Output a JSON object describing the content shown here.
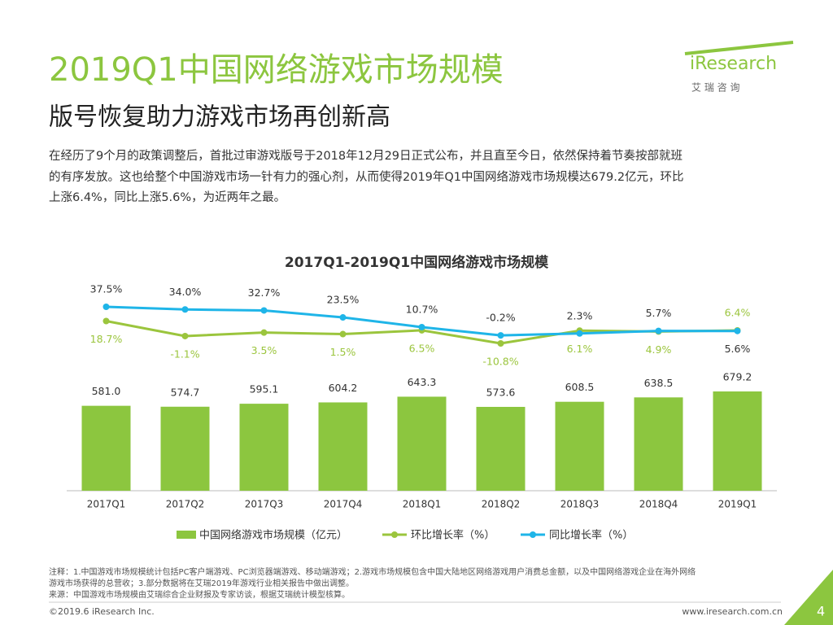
{
  "header": {
    "title": "2019Q1中国网络游戏市场规模",
    "subtitle": "版号恢复助力游戏市场再创新高",
    "body": [
      "在经历了9个月的政策调整后，首批过审游戏版号于2018年12月29日正式公布，并且直至今日，依然保持着节奏按部就班",
      "的有序发放。这也给整个中国游戏市场一针有力的强心剂，从而使得2019年Q1中国网络游戏市场规模达679.2亿元，环比",
      "上涨6.4%，同比上涨5.6%，为近两年之最。"
    ]
  },
  "logo": {
    "name": "iResearch",
    "sub": "艾 瑞 咨 询"
  },
  "chart_data": {
    "type": "bar",
    "title": "2017Q1-2019Q1中国网络游戏市场规模",
    "categories": [
      "2017Q1",
      "2017Q2",
      "2017Q3",
      "2017Q4",
      "2018Q1",
      "2018Q2",
      "2018Q3",
      "2018Q4",
      "2019Q1"
    ],
    "series": [
      {
        "name": "中国网络游戏市场规模（亿元）",
        "type": "bar",
        "color": "#8cc63f",
        "values": [
          581.0,
          574.7,
          595.1,
          604.2,
          643.3,
          573.6,
          608.5,
          638.5,
          679.2
        ],
        "value_labels": [
          "581.0",
          "574.7",
          "595.1",
          "604.2",
          "643.3",
          "573.6",
          "608.5",
          "638.5",
          "679.2"
        ]
      },
      {
        "name": "环比增长率（%）",
        "type": "line",
        "color": "#9bc53d",
        "values": [
          18.7,
          -1.1,
          3.5,
          1.5,
          6.5,
          -10.8,
          6.1,
          4.9,
          6.4
        ],
        "value_labels": [
          "18.7%",
          "-1.1%",
          "3.5%",
          "1.5%",
          "6.5%",
          "-10.8%",
          "6.1%",
          "4.9%",
          "6.4%"
        ]
      },
      {
        "name": "同比增长率（%）",
        "type": "line",
        "color": "#1fb5e8",
        "values": [
          37.5,
          34.0,
          32.7,
          23.5,
          10.7,
          -0.2,
          2.3,
          5.7,
          5.6
        ],
        "value_labels": [
          "37.5%",
          "34.0%",
          "32.7%",
          "23.5%",
          "10.7%",
          "-0.2%",
          "2.3%",
          "5.7%",
          "5.6%"
        ]
      }
    ]
  },
  "notes": [
    "注释：1.中国游戏市场规模统计包括PC客户端游戏、PC浏览器端游戏、移动端游戏；2.游戏市场规模包含中国大陆地区网络游戏用户消费总金额，以及中国网络游戏企业在海外网络",
    "游戏市场获得的总营收；3.部分数据将在艾瑞2019年游戏行业相关报告中做出调整。",
    "来源：中国游戏市场规模由艾瑞综合企业财报及专家访谈，根据艾瑞统计模型核算。"
  ],
  "footer": {
    "copyright": "©2019.6 iResearch Inc.",
    "url": "www.iresearch.com.cn",
    "page": 4
  }
}
